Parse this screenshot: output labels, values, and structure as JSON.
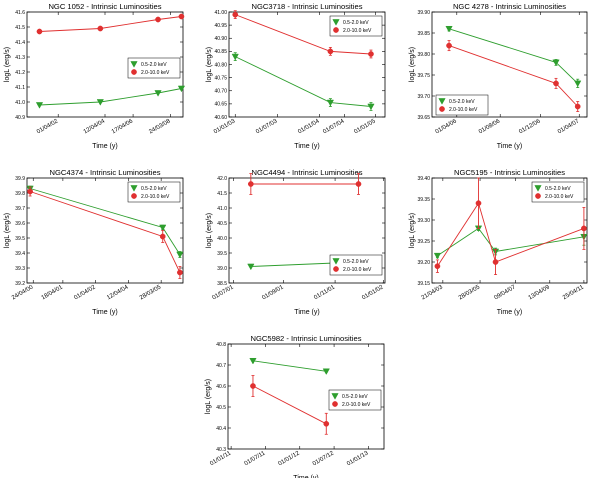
{
  "chart_data": [
    {
      "type": "line",
      "title": "NGC 1052 - Intrinsic Luminosities",
      "xlabel": "Time (y)",
      "ylabel": "logL (erg/s)",
      "ylim": [
        40.9,
        41.6
      ],
      "yticks": [
        40.9,
        41.0,
        41.1,
        41.2,
        41.3,
        41.4,
        41.5,
        41.6
      ],
      "ytick_labels": [
        "40.9",
        "41.0",
        "41.1",
        "41.2",
        "41.3",
        "41.4",
        "41.5",
        "41.6"
      ],
      "xlim": [
        0,
        10
      ],
      "xticks": [
        2.0,
        5.0,
        6.8,
        9.2
      ],
      "xtick_labels": [
        "01/04/02",
        "12/04/04",
        "17/04/06",
        "24/03/08"
      ],
      "legend_position": "center-right",
      "series": [
        {
          "name": "0.5-2.0 keV",
          "marker": "triangle",
          "color": "#2e9e2e",
          "x": [
            0.8,
            4.7,
            8.4,
            9.9
          ],
          "y": [
            40.98,
            41.0,
            41.06,
            41.09
          ],
          "err": [
            0,
            0,
            0,
            0
          ]
        },
        {
          "name": "2.0-10.0 keV",
          "marker": "circle",
          "color": "#e03030",
          "x": [
            0.8,
            4.7,
            8.4,
            9.9
          ],
          "y": [
            41.47,
            41.49,
            41.55,
            41.57
          ],
          "err": [
            0,
            0,
            0,
            0
          ]
        }
      ]
    },
    {
      "type": "line",
      "title": "NGC3718 - Intrinsic Luminosities",
      "xlabel": "Time (y)",
      "ylabel": "logL (erg/s)",
      "ylim": [
        40.6,
        41.0
      ],
      "yticks": [
        40.6,
        40.65,
        40.7,
        40.75,
        40.8,
        40.85,
        40.9,
        40.95,
        41.0
      ],
      "ytick_labels": [
        "40.60",
        "40.65",
        "40.70",
        "40.75",
        "40.80",
        "40.85",
        "40.90",
        "40.95",
        "41.00"
      ],
      "xlim": [
        0,
        10
      ],
      "xticks": [
        0.4,
        3.1,
        5.8,
        7.4,
        9.4
      ],
      "xtick_labels": [
        "01/01/03",
        "01/07/03",
        "01/01/04",
        "01/07/04",
        "01/01/05"
      ],
      "legend_position": "top-right",
      "series": [
        {
          "name": "0.5-2.0 keV",
          "marker": "triangle",
          "color": "#2e9e2e",
          "x": [
            0.4,
            6.5,
            9.1
          ],
          "y": [
            40.83,
            40.655,
            40.64
          ],
          "err": [
            0.015,
            0.015,
            0.015
          ]
        },
        {
          "name": "2.0-10.0 keV",
          "marker": "circle",
          "color": "#e03030",
          "x": [
            0.4,
            6.5,
            9.1
          ],
          "y": [
            40.99,
            40.85,
            40.84
          ],
          "err": [
            0.015,
            0.015,
            0.015
          ]
        }
      ]
    },
    {
      "type": "line",
      "title": "NGC 4278 - Intrinsic Luminosities",
      "xlabel": "Time (y)",
      "ylabel": "logL (erg/s)",
      "ylim": [
        39.65,
        39.9
      ],
      "yticks": [
        39.65,
        39.7,
        39.75,
        39.8,
        39.85,
        39.9
      ],
      "ytick_labels": [
        "39.65",
        "39.70",
        "39.75",
        "39.80",
        "39.85",
        "39.90"
      ],
      "xlim": [
        0,
        10
      ],
      "xticks": [
        1.6,
        4.4,
        7.0,
        9.5
      ],
      "xtick_labels": [
        "01/04/06",
        "01/08/06",
        "01/12/06",
        "01/04/07"
      ],
      "legend_position": "bottom-left",
      "series": [
        {
          "name": "0.5-2.0 keV",
          "marker": "triangle",
          "color": "#2e9e2e",
          "x": [
            1.1,
            8.0,
            9.4
          ],
          "y": [
            39.86,
            39.78,
            39.73
          ],
          "err": [
            0.005,
            0.007,
            0.01
          ]
        },
        {
          "name": "2.0-10.0 keV",
          "marker": "circle",
          "color": "#e03030",
          "x": [
            1.1,
            8.0,
            9.4
          ],
          "y": [
            39.82,
            39.73,
            39.675
          ],
          "err": [
            0.012,
            0.012,
            0.012
          ]
        }
      ]
    },
    {
      "type": "line",
      "title": "NGC4374 - Intrinsic Luminosities",
      "xlabel": "Time (y)",
      "ylabel": "logL (erg/s)",
      "ylim": [
        39.2,
        39.9
      ],
      "yticks": [
        39.2,
        39.3,
        39.4,
        39.5,
        39.6,
        39.7,
        39.8,
        39.9
      ],
      "ytick_labels": [
        "39.2",
        "39.3",
        "39.4",
        "39.5",
        "39.6",
        "39.7",
        "39.8",
        "39.9"
      ],
      "xlim": [
        0,
        10
      ],
      "xticks": [
        0.4,
        2.3,
        4.4,
        6.5,
        8.6
      ],
      "xtick_labels": [
        "24/04/00",
        "18/04/01",
        "01/04/02",
        "12/04/04",
        "28/03/05"
      ],
      "legend_position": "top-right",
      "series": [
        {
          "name": "0.5-2.0 keV",
          "marker": "triangle",
          "color": "#2e9e2e",
          "x": [
            0.2,
            8.7,
            9.8
          ],
          "y": [
            39.83,
            39.57,
            39.39
          ],
          "err": [
            0.015,
            0.015,
            0.02
          ]
        },
        {
          "name": "2.0-10.0 keV",
          "marker": "circle",
          "color": "#e03030",
          "x": [
            0.2,
            8.7,
            9.8
          ],
          "y": [
            39.81,
            39.51,
            39.27
          ],
          "err": [
            0.03,
            0.04,
            0.04
          ]
        }
      ]
    },
    {
      "type": "line",
      "title": "NGC4494 - Intrinsic Luminosities",
      "xlabel": "Time (y)",
      "ylabel": "logL (erg/s)",
      "ylim": [
        38.5,
        42.0
      ],
      "yticks": [
        38.5,
        39.0,
        39.5,
        40.0,
        40.5,
        41.0,
        41.5,
        42.0
      ],
      "ytick_labels": [
        "38.5",
        "39.0",
        "39.5",
        "40.0",
        "40.5",
        "41.0",
        "41.5",
        "42.0"
      ],
      "xlim": [
        0,
        10
      ],
      "xticks": [
        0.3,
        3.5,
        6.8,
        9.9
      ],
      "xtick_labels": [
        "01/07/01",
        "01/09/01",
        "01/11/01",
        "01/01/02"
      ],
      "legend_position": "bottom-right",
      "series": [
        {
          "name": "0.5-2.0 keV",
          "marker": "triangle",
          "color": "#2e9e2e",
          "x": [
            1.4,
            8.3
          ],
          "y": [
            39.05,
            39.2
          ],
          "err": [
            0,
            0
          ]
        },
        {
          "name": "2.0-10.0 keV",
          "marker": "circle",
          "color": "#e03030",
          "x": [
            1.4,
            8.3
          ],
          "y": [
            41.8,
            41.8
          ],
          "err": [
            0.35,
            0.35
          ]
        }
      ]
    },
    {
      "type": "line",
      "title": "NGC5195 - Intrinsic Luminosities",
      "xlabel": "Time (y)",
      "ylabel": "logL (erg/s)",
      "ylim": [
        39.15,
        39.4
      ],
      "yticks": [
        39.15,
        39.2,
        39.25,
        39.3,
        39.35,
        39.4
      ],
      "ytick_labels": [
        "39.15",
        "39.20",
        "39.25",
        "39.30",
        "39.35",
        "39.40"
      ],
      "xlim": [
        0,
        10
      ],
      "xticks": [
        0.7,
        3.1,
        5.4,
        7.6,
        9.8
      ],
      "xtick_labels": [
        "21/04/03",
        "28/03/05",
        "09/04/07",
        "13/04/09",
        "25/04/11"
      ],
      "legend_position": "top-right",
      "series": [
        {
          "name": "0.5-2.0 keV",
          "marker": "triangle",
          "color": "#2e9e2e",
          "x": [
            0.35,
            3.0,
            4.1,
            9.8
          ],
          "y": [
            39.215,
            39.28,
            39.225,
            39.26
          ],
          "err": [
            0.005,
            0.005,
            0.008,
            0.02
          ]
        },
        {
          "name": "2.0-10.0 keV",
          "marker": "circle",
          "color": "#e03030",
          "x": [
            0.35,
            3.0,
            4.1,
            9.8
          ],
          "y": [
            39.19,
            39.34,
            39.2,
            39.28
          ],
          "err": [
            0.015,
            0.06,
            0.03,
            0.05
          ]
        }
      ]
    },
    {
      "type": "line",
      "title": "NGC5982 - Intrinsic Luminosities",
      "xlabel": "Time (y)",
      "ylabel": "logL (erg/s)",
      "ylim": [
        40.3,
        40.8
      ],
      "yticks": [
        40.3,
        40.4,
        40.5,
        40.6,
        40.7,
        40.8
      ],
      "ytick_labels": [
        "40.3",
        "40.4",
        "40.5",
        "40.6",
        "40.7",
        "40.8"
      ],
      "xlim": [
        0,
        10
      ],
      "xticks": [
        0.2,
        2.4,
        4.6,
        6.8,
        9.0
      ],
      "xtick_labels": [
        "01/01/11",
        "01/07/11",
        "01/01/12",
        "01/07/12",
        "01/01/13"
      ],
      "legend_position": "center-right",
      "series": [
        {
          "name": "0.5-2.0 keV",
          "marker": "triangle",
          "color": "#2e9e2e",
          "x": [
            1.6,
            6.3
          ],
          "y": [
            40.72,
            40.67
          ],
          "err": [
            0.003,
            0.003
          ]
        },
        {
          "name": "2.0-10.0 keV",
          "marker": "circle",
          "color": "#e03030",
          "x": [
            1.6,
            6.3
          ],
          "y": [
            40.6,
            40.42
          ],
          "err": [
            0.05,
            0.05
          ]
        }
      ]
    }
  ]
}
